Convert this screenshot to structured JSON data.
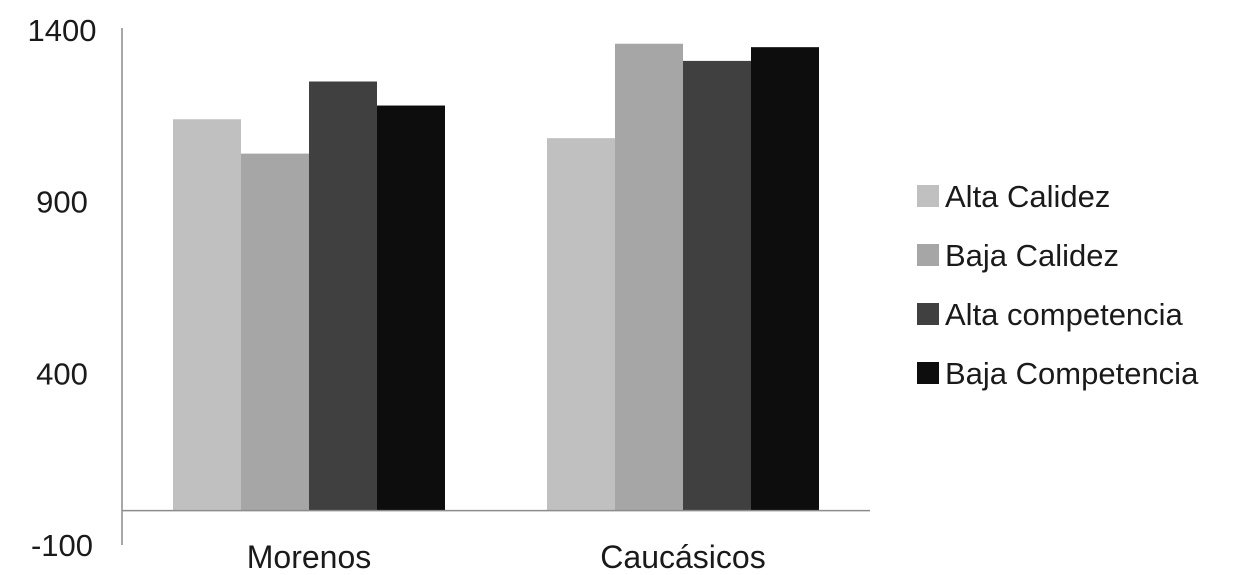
{
  "chart_data": {
    "type": "bar",
    "title": "",
    "xlabel": "",
    "ylabel": "",
    "categories": [
      "Morenos",
      "Caucásicos"
    ],
    "series": [
      {
        "name": "Alta Calidez",
        "values": [
          1140,
          1085
        ],
        "color": "#c0c0c0"
      },
      {
        "name": "Baja Calidez",
        "values": [
          1040,
          1360
        ],
        "color": "#a6a6a6"
      },
      {
        "name": "Alta competencia",
        "values": [
          1250,
          1310
        ],
        "color": "#404040"
      },
      {
        "name": "Baja Competencia",
        "values": [
          1180,
          1350
        ],
        "color": "#0d0d0d"
      }
    ],
    "ylim": [
      -100,
      1400
    ],
    "yticks": [
      -100,
      400,
      900,
      1400
    ],
    "ytick_labels": [
      "-100",
      "400",
      "900",
      "1400"
    ],
    "grid": false,
    "legend_position": "right"
  }
}
